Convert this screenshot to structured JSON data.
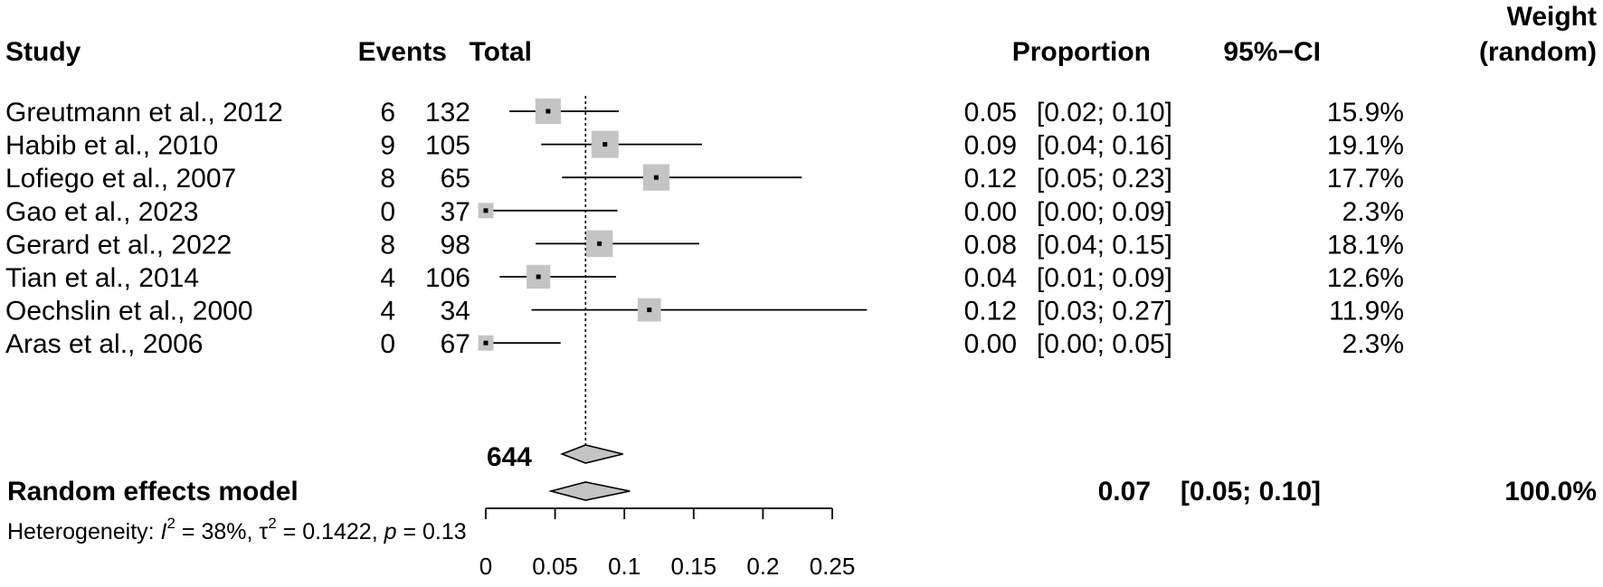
{
  "headers": {
    "study": "Study",
    "events": "Events",
    "total": "Total",
    "proportion": "Proportion",
    "ci": "95%−CI",
    "weight_line1": "Weight",
    "weight_line2": "(random)"
  },
  "chart_data": {
    "type": "forest",
    "xlim": [
      0,
      0.25
    ],
    "x_ticks": [
      0,
      0.05,
      0.1,
      0.15,
      0.2,
      0.25
    ],
    "x_tick_labels": [
      "0",
      "0.05",
      "0.1",
      "0.15",
      "0.2",
      "0.25"
    ],
    "reference_line": 0.072,
    "studies": [
      {
        "study": "Greutmann et al., 2012",
        "events": "6",
        "total": "132",
        "proportion": 0.045,
        "ci_low": 0.017,
        "ci_high": 0.096,
        "weight": 15.9,
        "proportion_label": "0.05",
        "ci_label": "[0.02; 0.10]",
        "weight_label": "15.9%"
      },
      {
        "study": "Habib et al., 2010",
        "events": "9",
        "total": "105",
        "proportion": 0.086,
        "ci_low": 0.04,
        "ci_high": 0.156,
        "weight": 19.1,
        "proportion_label": "0.09",
        "ci_label": "[0.04; 0.16]",
        "weight_label": "19.1%"
      },
      {
        "study": "Lofiego et al., 2007",
        "events": "8",
        "total": "65",
        "proportion": 0.123,
        "ci_low": 0.055,
        "ci_high": 0.228,
        "weight": 17.7,
        "proportion_label": "0.12",
        "ci_label": "[0.05; 0.23]",
        "weight_label": "17.7%"
      },
      {
        "study": "Gao et al., 2023",
        "events": "0",
        "total": "37",
        "proportion": 0.0,
        "ci_low": 0.0,
        "ci_high": 0.095,
        "weight": 2.3,
        "proportion_label": "0.00",
        "ci_label": "[0.00; 0.09]",
        "weight_label": "2.3%"
      },
      {
        "study": "Gerard et al., 2022",
        "events": "8",
        "total": "98",
        "proportion": 0.082,
        "ci_low": 0.036,
        "ci_high": 0.154,
        "weight": 18.1,
        "proportion_label": "0.08",
        "ci_label": "[0.04; 0.15]",
        "weight_label": "18.1%"
      },
      {
        "study": "Tian et al., 2014",
        "events": "4",
        "total": "106",
        "proportion": 0.038,
        "ci_low": 0.01,
        "ci_high": 0.094,
        "weight": 12.6,
        "proportion_label": "0.04",
        "ci_label": "[0.01; 0.09]",
        "weight_label": "12.6%"
      },
      {
        "study": "Oechslin et al., 2000",
        "events": "4",
        "total": "34",
        "proportion": 0.118,
        "ci_low": 0.033,
        "ci_high": 0.275,
        "weight": 11.9,
        "proportion_label": "0.12",
        "ci_label": "[0.03; 0.27]",
        "weight_label": "11.9%"
      },
      {
        "study": "Aras et al., 2006",
        "events": "0",
        "total": "67",
        "proportion": 0.0,
        "ci_low": 0.0,
        "ci_high": 0.054,
        "weight": 2.3,
        "proportion_label": "0.00",
        "ci_label": "[0.00; 0.05]",
        "weight_label": "2.3%"
      }
    ],
    "pooled_total": "644",
    "common_diamond": {
      "estimate": 0.072,
      "ci_low": 0.055,
      "ci_high": 0.099
    },
    "random_effects": {
      "label": "Random effects model",
      "estimate": 0.072,
      "ci_low": 0.047,
      "ci_high": 0.104,
      "proportion_label": "0.07",
      "ci_label": "[0.05; 0.10]",
      "weight_label": "100.0%"
    },
    "heterogeneity": {
      "prefix": "Heterogeneity: ",
      "i2_symbol": "I",
      "i2_value": " = 38%, ",
      "tau_symbol": "τ",
      "tau_value": " = 0.1422, ",
      "p_symbol": "p",
      "p_value": " = 0.13"
    }
  }
}
